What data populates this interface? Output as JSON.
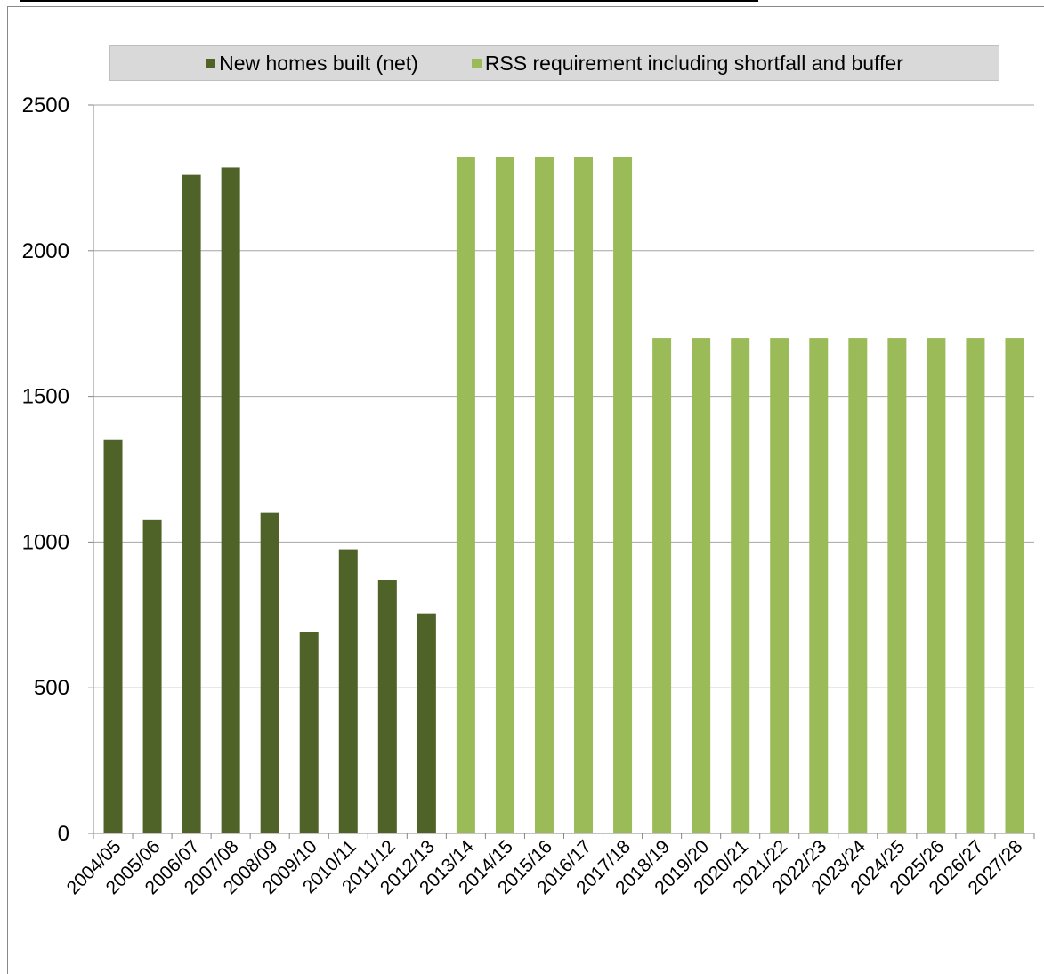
{
  "colors": {
    "built": "#4f6228",
    "requirement": "#9bbb59",
    "grid": "#a6a6a6",
    "legend_bg": "#d9d9d9"
  },
  "legend": {
    "built_label": "New homes built (net)",
    "requirement_label": "RSS requirement including shortfall and buffer"
  },
  "chart_data": {
    "type": "bar",
    "title": "",
    "xlabel": "",
    "ylabel": "",
    "ylim": [
      0,
      2500
    ],
    "yticks": [
      0,
      500,
      1000,
      1500,
      2000,
      2500
    ],
    "grid": true,
    "legend_position": "top",
    "categories": [
      "2004/05",
      "2005/06",
      "2006/07",
      "2007/08",
      "2008/09",
      "2009/10",
      "2010/11",
      "2011/12",
      "2012/13",
      "2013/14",
      "2014/15",
      "2015/16",
      "2016/17",
      "2017/18",
      "2018/19",
      "2019/20",
      "2020/21",
      "2021/22",
      "2022/23",
      "2023/24",
      "2024/25",
      "2025/26",
      "2026/27",
      "2027/28"
    ],
    "series": [
      {
        "name": "New homes built (net)",
        "values": [
          1350,
          1075,
          2260,
          2285,
          1100,
          690,
          975,
          870,
          755,
          null,
          null,
          null,
          null,
          null,
          null,
          null,
          null,
          null,
          null,
          null,
          null,
          null,
          null,
          null
        ]
      },
      {
        "name": "RSS requirement including shortfall and buffer",
        "values": [
          null,
          null,
          null,
          null,
          null,
          null,
          null,
          null,
          null,
          2320,
          2320,
          2320,
          2320,
          2320,
          1700,
          1700,
          1700,
          1700,
          1700,
          1700,
          1700,
          1700,
          1700,
          1700
        ]
      }
    ]
  }
}
